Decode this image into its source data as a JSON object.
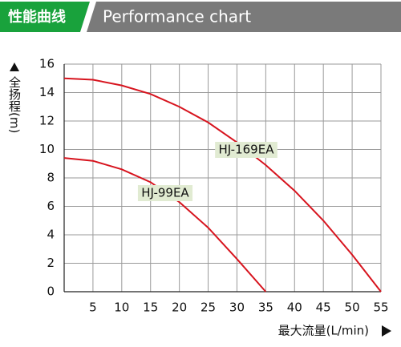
{
  "chart_data": {
    "type": "line",
    "title": "性能曲线",
    "subtitle": "Performance chart",
    "y_label": "全扬程(m)",
    "x_label": "最大流量(L/min)",
    "series": [
      {
        "name": "HJ-169EA",
        "color": "#d7141e",
        "x": [
          0,
          5,
          10,
          15,
          20,
          25,
          30,
          35,
          40,
          45,
          50,
          55
        ],
        "values": [
          15,
          14.9,
          14.5,
          13.9,
          13.0,
          11.9,
          10.5,
          8.9,
          7.1,
          5.0,
          2.6,
          0
        ]
      },
      {
        "name": "HJ-99EA",
        "color": "#d7141e",
        "x": [
          0,
          5,
          10,
          15,
          20,
          25,
          30,
          35
        ],
        "values": [
          9.4,
          9.2,
          8.6,
          7.7,
          6.3,
          4.5,
          2.3,
          0
        ]
      }
    ],
    "xlim": [
      0,
      55
    ],
    "xticks": [
      5,
      10,
      15,
      20,
      25,
      30,
      35,
      40,
      45,
      50,
      55
    ],
    "ylim": [
      0,
      16
    ],
    "yticks": [
      0,
      2,
      4,
      6,
      8,
      10,
      12,
      14,
      16
    ],
    "grid": true
  }
}
